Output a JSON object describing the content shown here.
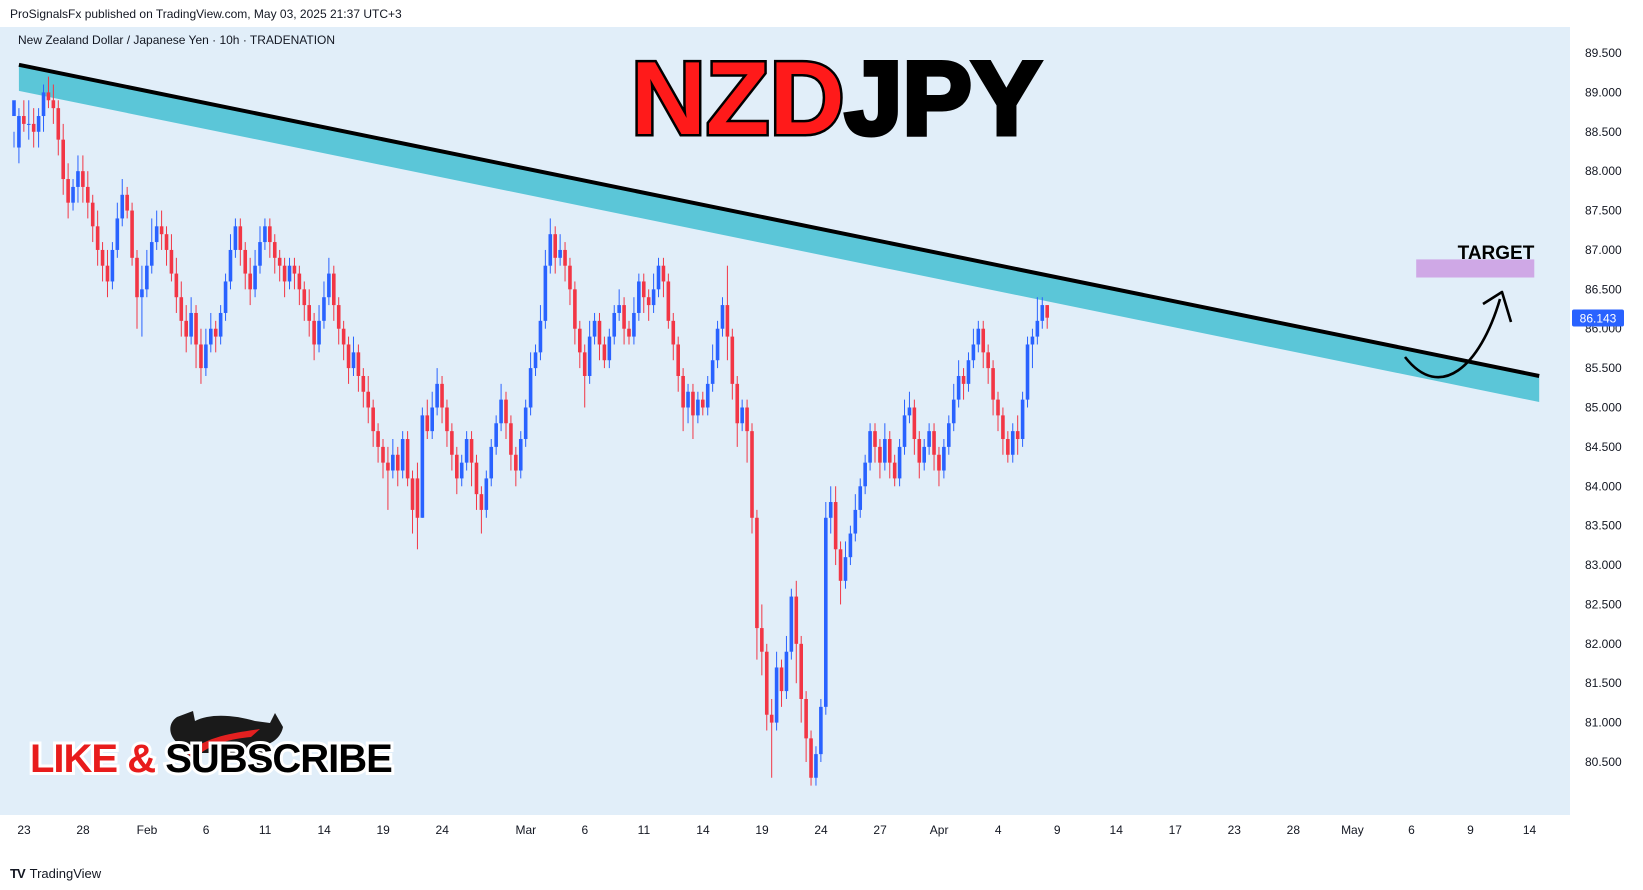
{
  "header": {
    "published_by": "ProSignalsFx published on TradingView.com, May 03, 2025 21:37 UTC+3"
  },
  "footer": {
    "brand": "TradingView"
  },
  "colors": {
    "background": "#e1eef9",
    "up_candle": "#2962ff",
    "down_candle": "#f23645",
    "trendline_band": "#5bc6d8",
    "target_box": "#cfa8e6",
    "title_red": "#ff1a1a",
    "title_black": "#000000",
    "price_badge": "#2962ff"
  },
  "chart_data": {
    "type": "candlestick",
    "symbol_line": "New Zealand Dollar / Japanese Yen · 10h · TRADENATION",
    "headline": {
      "part1": "NZD",
      "part2": "JPY"
    },
    "last_price": "86.143",
    "annotation_target": "TARGET",
    "promo_text": {
      "part1": "LIKE ",
      "part2": "& ",
      "part3": "SUBSCRIBE"
    },
    "y_range": [
      80.0,
      89.8
    ],
    "y_ticks": [
      "89.500",
      "89.000",
      "88.500",
      "88.000",
      "87.500",
      "87.000",
      "86.500",
      "86.000",
      "85.500",
      "85.000",
      "84.500",
      "84.000",
      "83.500",
      "83.000",
      "82.500",
      "82.000",
      "81.500",
      "81.000",
      "80.500"
    ],
    "x_ticks": [
      {
        "label": "23",
        "i": 0
      },
      {
        "label": "28",
        "i": 12
      },
      {
        "label": "Feb",
        "i": 25
      },
      {
        "label": "6",
        "i": 37
      },
      {
        "label": "11",
        "i": 49
      },
      {
        "label": "14",
        "i": 61
      },
      {
        "label": "19",
        "i": 73
      },
      {
        "label": "24",
        "i": 85
      },
      {
        "label": "Mar",
        "i": 102
      },
      {
        "label": "6",
        "i": 114
      },
      {
        "label": "11",
        "i": 126
      },
      {
        "label": "14",
        "i": 138
      },
      {
        "label": "19",
        "i": 150
      },
      {
        "label": "24",
        "i": 162
      },
      {
        "label": "27",
        "i": 174
      },
      {
        "label": "Apr",
        "i": 186
      },
      {
        "label": "4",
        "i": 198
      },
      {
        "label": "9",
        "i": 210
      },
      {
        "label": "14",
        "i": 222
      },
      {
        "label": "17",
        "i": 234
      },
      {
        "label": "23",
        "i": 246
      },
      {
        "label": "28",
        "i": 258
      },
      {
        "label": "May",
        "i": 270
      },
      {
        "label": "6",
        "i": 282
      },
      {
        "label": "9",
        "i": 294
      },
      {
        "label": "14",
        "i": 306
      }
    ],
    "trendline": {
      "start": {
        "i": 1,
        "price": 89.35
      },
      "end": {
        "i": 310,
        "price": 85.4
      }
    },
    "target_zone": {
      "i_start": 285,
      "i_end": 309,
      "price_low": 86.65,
      "price_high": 86.88
    },
    "candle_step_px": 4.92,
    "candles": [
      [
        88.7,
        88.9,
        88.5,
        88.3
      ],
      [
        88.3,
        88.7,
        88.8,
        88.1
      ],
      [
        88.7,
        88.6,
        88.9,
        88.5
      ],
      [
        88.6,
        88.6,
        88.9,
        88.4
      ],
      [
        88.6,
        88.5,
        88.8,
        88.3
      ],
      [
        88.5,
        88.7,
        88.8,
        88.3
      ],
      [
        88.7,
        89.0,
        89.1,
        88.5
      ],
      [
        89.0,
        88.9,
        89.2,
        88.8
      ],
      [
        88.9,
        88.8,
        89.1,
        88.6
      ],
      [
        88.8,
        88.4,
        88.9,
        88.2
      ],
      [
        88.4,
        87.9,
        88.6,
        87.7
      ],
      [
        87.9,
        87.6,
        88.1,
        87.4
      ],
      [
        87.6,
        87.8,
        87.9,
        87.5
      ],
      [
        87.8,
        88.0,
        88.2,
        87.6
      ],
      [
        88.0,
        87.8,
        88.2,
        87.6
      ],
      [
        87.8,
        87.6,
        88.0,
        87.4
      ],
      [
        87.6,
        87.3,
        87.7,
        87.1
      ],
      [
        87.3,
        87.0,
        87.5,
        86.8
      ],
      [
        87.0,
        86.8,
        87.1,
        86.6
      ],
      [
        86.8,
        86.6,
        87.0,
        86.4
      ],
      [
        86.6,
        87.0,
        87.1,
        86.5
      ],
      [
        87.0,
        87.4,
        87.6,
        86.9
      ],
      [
        87.4,
        87.7,
        87.9,
        87.3
      ],
      [
        87.7,
        87.5,
        87.8,
        87.4
      ],
      [
        87.5,
        86.9,
        87.6,
        86.8
      ],
      [
        86.9,
        86.4,
        87.0,
        86.0
      ],
      [
        86.4,
        86.5,
        86.8,
        85.9
      ],
      [
        86.5,
        86.8,
        87.0,
        86.4
      ],
      [
        86.8,
        87.1,
        87.4,
        86.7
      ],
      [
        87.1,
        87.3,
        87.5,
        87.0
      ],
      [
        87.3,
        87.2,
        87.5,
        87.0
      ],
      [
        87.2,
        87.0,
        87.3,
        86.8
      ],
      [
        87.0,
        86.7,
        87.2,
        86.6
      ],
      [
        86.7,
        86.4,
        86.9,
        86.2
      ],
      [
        86.4,
        86.1,
        86.6,
        85.9
      ],
      [
        86.1,
        85.9,
        86.3,
        85.7
      ],
      [
        85.9,
        86.2,
        86.4,
        85.8
      ],
      [
        86.2,
        85.8,
        86.3,
        85.5
      ],
      [
        85.8,
        85.5,
        86.0,
        85.3
      ],
      [
        85.5,
        85.8,
        86.0,
        85.4
      ],
      [
        85.8,
        86.0,
        86.2,
        85.7
      ],
      [
        86.0,
        85.9,
        86.1,
        85.7
      ],
      [
        85.9,
        86.2,
        86.3,
        85.8
      ],
      [
        86.2,
        86.6,
        86.7,
        86.1
      ],
      [
        86.6,
        87.0,
        87.2,
        86.5
      ],
      [
        87.0,
        87.3,
        87.4,
        86.9
      ],
      [
        87.3,
        87.0,
        87.4,
        86.8
      ],
      [
        87.0,
        86.7,
        87.1,
        86.5
      ],
      [
        86.7,
        86.5,
        86.9,
        86.3
      ],
      [
        86.5,
        86.8,
        87.0,
        86.4
      ],
      [
        86.8,
        87.1,
        87.3,
        86.7
      ],
      [
        87.1,
        87.3,
        87.4,
        87.0
      ],
      [
        87.3,
        87.1,
        87.4,
        86.9
      ],
      [
        87.1,
        86.9,
        87.2,
        86.7
      ],
      [
        86.9,
        86.8,
        87.0,
        86.6
      ],
      [
        86.8,
        86.6,
        86.9,
        86.4
      ],
      [
        86.6,
        86.8,
        86.9,
        86.5
      ],
      [
        86.8,
        86.7,
        86.9,
        86.5
      ],
      [
        86.7,
        86.5,
        86.8,
        86.3
      ],
      [
        86.5,
        86.3,
        86.6,
        86.1
      ],
      [
        86.3,
        86.1,
        86.5,
        85.9
      ],
      [
        86.1,
        85.8,
        86.2,
        85.6
      ],
      [
        85.8,
        86.1,
        86.3,
        85.7
      ],
      [
        86.1,
        86.4,
        86.6,
        86.0
      ],
      [
        86.4,
        86.7,
        86.9,
        86.3
      ],
      [
        86.7,
        86.3,
        86.8,
        86.1
      ],
      [
        86.3,
        86.0,
        86.4,
        85.8
      ],
      [
        86.0,
        85.8,
        86.1,
        85.6
      ],
      [
        85.8,
        85.5,
        85.9,
        85.3
      ],
      [
        85.5,
        85.7,
        85.9,
        85.4
      ],
      [
        85.7,
        85.4,
        85.8,
        85.2
      ],
      [
        85.4,
        85.2,
        85.5,
        85.0
      ],
      [
        85.2,
        85.0,
        85.4,
        84.8
      ],
      [
        85.0,
        84.7,
        85.1,
        84.5
      ],
      [
        84.7,
        84.5,
        84.8,
        84.3
      ],
      [
        84.5,
        84.3,
        84.6,
        84.1
      ],
      [
        84.3,
        84.2,
        84.5,
        83.7
      ],
      [
        84.2,
        84.4,
        84.6,
        84.1
      ],
      [
        84.4,
        84.2,
        84.5,
        84.0
      ],
      [
        84.2,
        84.6,
        84.7,
        84.1
      ],
      [
        84.6,
        84.1,
        84.7,
        84.0
      ],
      [
        84.1,
        83.7,
        84.2,
        83.4
      ],
      [
        84.1,
        83.6,
        84.3,
        83.2
      ],
      [
        83.6,
        84.9,
        85.0,
        83.6
      ],
      [
        84.9,
        84.7,
        85.1,
        84.6
      ],
      [
        84.7,
        85.0,
        85.2,
        84.6
      ],
      [
        85.0,
        85.3,
        85.5,
        84.9
      ],
      [
        85.3,
        85.0,
        85.4,
        84.8
      ],
      [
        85.0,
        84.7,
        85.1,
        84.5
      ],
      [
        84.7,
        84.4,
        84.8,
        84.2
      ],
      [
        84.4,
        84.1,
        84.5,
        83.9
      ],
      [
        84.1,
        84.3,
        84.4,
        84.0
      ],
      [
        84.3,
        84.6,
        84.7,
        84.2
      ],
      [
        84.6,
        84.3,
        84.7,
        84.0
      ],
      [
        84.3,
        83.9,
        84.4,
        83.7
      ],
      [
        83.9,
        83.7,
        84.0,
        83.4
      ],
      [
        83.7,
        84.1,
        84.2,
        83.6
      ],
      [
        84.1,
        84.5,
        84.6,
        84.0
      ],
      [
        84.5,
        84.8,
        84.9,
        84.4
      ],
      [
        84.8,
        85.1,
        85.3,
        84.7
      ],
      [
        85.1,
        84.8,
        85.2,
        84.6
      ],
      [
        84.8,
        84.4,
        84.9,
        84.2
      ],
      [
        84.4,
        84.2,
        84.5,
        84.0
      ],
      [
        84.2,
        84.6,
        84.7,
        84.1
      ],
      [
        84.6,
        85.0,
        85.1,
        84.5
      ],
      [
        85.0,
        85.5,
        85.7,
        84.9
      ],
      [
        85.5,
        85.7,
        85.8,
        85.4
      ],
      [
        85.7,
        86.1,
        86.3,
        85.6
      ],
      [
        86.1,
        86.8,
        87.0,
        86.0
      ],
      [
        86.8,
        87.2,
        87.4,
        86.7
      ],
      [
        87.2,
        86.9,
        87.3,
        86.7
      ],
      [
        86.9,
        87.0,
        87.2,
        86.8
      ],
      [
        87.0,
        86.8,
        87.1,
        86.6
      ],
      [
        86.8,
        86.5,
        86.9,
        86.3
      ],
      [
        86.5,
        86.0,
        86.6,
        85.8
      ],
      [
        86.0,
        85.7,
        86.1,
        85.5
      ],
      [
        85.7,
        85.4,
        85.8,
        85.0
      ],
      [
        85.4,
        85.9,
        86.1,
        85.3
      ],
      [
        85.9,
        86.1,
        86.2,
        85.8
      ],
      [
        86.1,
        85.8,
        86.2,
        85.6
      ],
      [
        85.8,
        85.6,
        85.9,
        85.5
      ],
      [
        85.6,
        85.9,
        86.0,
        85.5
      ],
      [
        85.9,
        86.2,
        86.3,
        85.8
      ],
      [
        86.2,
        86.3,
        86.5,
        86.1
      ],
      [
        86.3,
        86.0,
        86.4,
        85.8
      ],
      [
        86.0,
        85.9,
        86.1,
        85.8
      ],
      [
        85.9,
        86.2,
        86.4,
        85.8
      ],
      [
        86.2,
        86.6,
        86.7,
        86.1
      ],
      [
        86.6,
        86.4,
        86.7,
        86.2
      ],
      [
        86.4,
        86.3,
        86.5,
        86.1
      ],
      [
        86.3,
        86.5,
        86.7,
        86.2
      ],
      [
        86.5,
        86.8,
        86.9,
        86.4
      ],
      [
        86.8,
        86.6,
        86.9,
        86.4
      ],
      [
        86.6,
        86.1,
        86.7,
        86.0
      ],
      [
        86.1,
        85.8,
        86.2,
        85.6
      ],
      [
        85.8,
        85.4,
        85.9,
        85.2
      ],
      [
        85.4,
        85.0,
        85.5,
        84.7
      ],
      [
        85.0,
        85.2,
        85.3,
        84.8
      ],
      [
        85.2,
        84.9,
        85.3,
        84.6
      ],
      [
        84.9,
        85.1,
        85.2,
        84.8
      ],
      [
        85.1,
        85.0,
        85.2,
        84.9
      ],
      [
        85.0,
        85.3,
        85.4,
        84.9
      ],
      [
        85.3,
        85.6,
        85.8,
        85.2
      ],
      [
        85.6,
        86.0,
        86.1,
        85.5
      ],
      [
        86.0,
        86.3,
        86.4,
        85.9
      ],
      [
        86.3,
        85.9,
        86.8,
        85.6
      ],
      [
        85.9,
        85.3,
        86.0,
        85.1
      ],
      [
        85.3,
        84.8,
        85.4,
        84.5
      ],
      [
        84.8,
        85.0,
        85.1,
        84.7
      ],
      [
        85.0,
        84.7,
        85.1,
        84.3
      ],
      [
        84.7,
        83.6,
        84.8,
        83.4
      ],
      [
        83.6,
        82.2,
        83.7,
        81.8
      ],
      [
        82.2,
        81.9,
        82.5,
        81.6
      ],
      [
        81.9,
        81.1,
        82.0,
        80.9
      ],
      [
        81.1,
        81.0,
        81.3,
        80.3
      ],
      [
        81.0,
        81.7,
        81.9,
        80.9
      ],
      [
        81.7,
        81.4,
        81.8,
        81.2
      ],
      [
        81.4,
        81.9,
        82.1,
        81.3
      ],
      [
        81.9,
        82.6,
        82.7,
        81.8
      ],
      [
        82.6,
        82.0,
        82.8,
        81.5
      ],
      [
        82.0,
        81.3,
        82.1,
        81.0
      ],
      [
        81.3,
        80.8,
        81.4,
        80.5
      ],
      [
        80.8,
        80.3,
        80.9,
        80.2
      ],
      [
        80.3,
        80.6,
        80.7,
        80.2
      ],
      [
        80.6,
        81.2,
        81.3,
        80.5
      ],
      [
        81.2,
        83.6,
        83.8,
        81.1
      ],
      [
        83.6,
        83.8,
        84.0,
        83.4
      ],
      [
        83.8,
        83.2,
        84.0,
        83.0
      ],
      [
        83.2,
        82.8,
        83.3,
        82.5
      ],
      [
        82.8,
        83.1,
        83.3,
        82.7
      ],
      [
        83.1,
        83.4,
        83.5,
        83.0
      ],
      [
        83.4,
        83.7,
        83.9,
        83.3
      ],
      [
        83.7,
        84.0,
        84.1,
        83.6
      ],
      [
        84.0,
        84.3,
        84.4,
        83.9
      ],
      [
        84.3,
        84.7,
        84.8,
        84.2
      ],
      [
        84.7,
        84.5,
        84.8,
        84.3
      ],
      [
        84.5,
        84.3,
        84.6,
        84.1
      ],
      [
        84.3,
        84.6,
        84.8,
        84.2
      ],
      [
        84.6,
        84.3,
        84.7,
        84.1
      ],
      [
        84.3,
        84.1,
        84.4,
        84.0
      ],
      [
        84.1,
        84.5,
        84.6,
        84.0
      ],
      [
        84.5,
        84.9,
        85.1,
        84.4
      ],
      [
        84.9,
        85.0,
        85.2,
        84.8
      ],
      [
        85.0,
        84.6,
        85.1,
        84.4
      ],
      [
        84.6,
        84.3,
        84.7,
        84.1
      ],
      [
        84.3,
        84.5,
        84.6,
        84.2
      ],
      [
        84.5,
        84.7,
        84.8,
        84.4
      ],
      [
        84.7,
        84.4,
        84.8,
        84.2
      ],
      [
        84.4,
        84.2,
        84.5,
        84.0
      ],
      [
        84.2,
        84.5,
        84.6,
        84.1
      ],
      [
        84.5,
        84.8,
        84.9,
        84.4
      ],
      [
        84.8,
        85.1,
        85.3,
        84.7
      ],
      [
        85.1,
        85.4,
        85.6,
        85.0
      ],
      [
        85.4,
        85.3,
        85.5,
        85.1
      ],
      [
        85.3,
        85.6,
        85.7,
        85.2
      ],
      [
        85.6,
        85.8,
        86.0,
        85.5
      ],
      [
        85.8,
        86.0,
        86.1,
        85.7
      ],
      [
        86.0,
        85.7,
        86.1,
        85.5
      ],
      [
        85.7,
        85.5,
        85.8,
        85.3
      ],
      [
        85.5,
        85.1,
        85.6,
        84.9
      ],
      [
        85.1,
        84.9,
        85.2,
        84.7
      ],
      [
        84.9,
        84.6,
        85.0,
        84.4
      ],
      [
        84.6,
        84.4,
        84.7,
        84.3
      ],
      [
        84.4,
        84.7,
        84.8,
        84.3
      ],
      [
        84.7,
        84.6,
        84.9,
        84.4
      ],
      [
        84.6,
        85.1,
        85.2,
        84.5
      ],
      [
        85.1,
        85.8,
        85.9,
        85.0
      ],
      [
        85.8,
        85.9,
        86.0,
        85.5
      ],
      [
        85.9,
        86.1,
        86.4,
        85.8
      ],
      [
        86.1,
        86.3,
        86.4,
        86.0
      ],
      [
        86.3,
        86.14,
        86.3,
        86.0
      ]
    ]
  }
}
